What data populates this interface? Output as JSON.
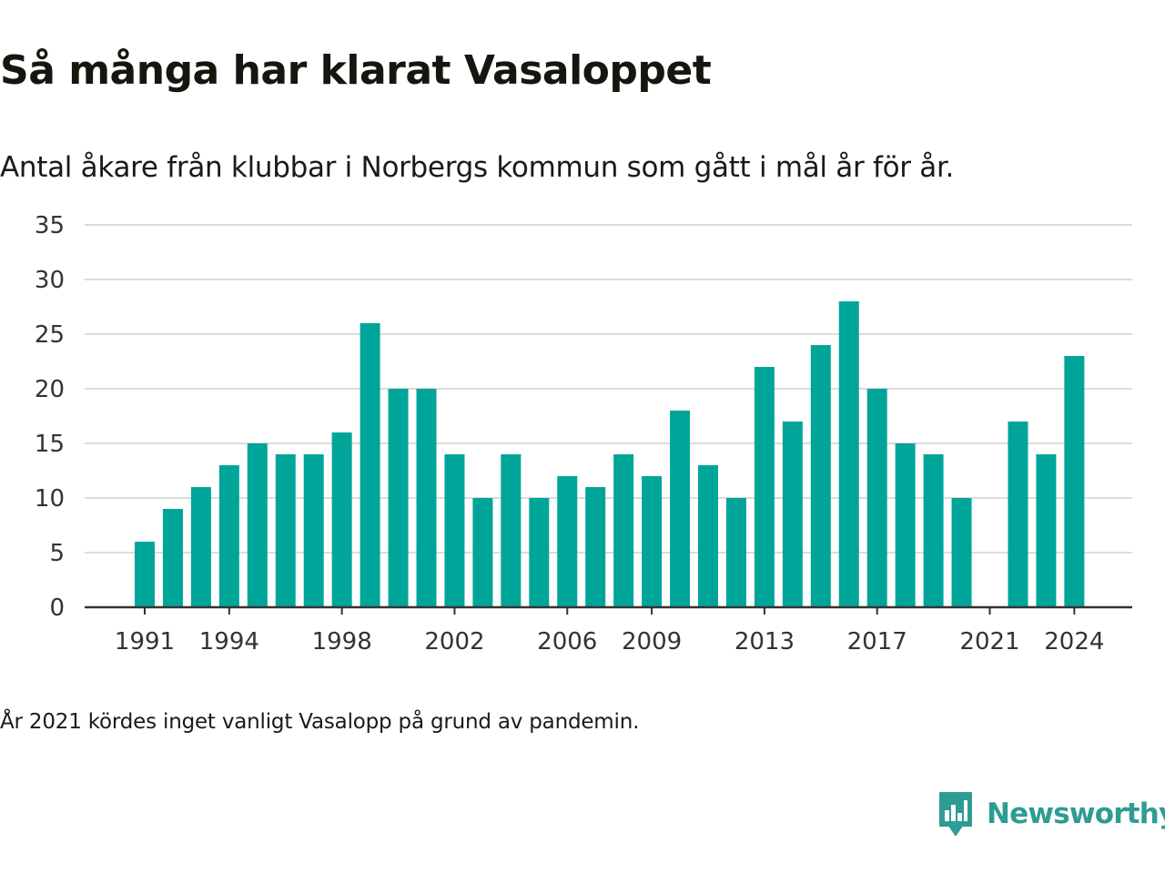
{
  "title": "Så många har klarat Vasaloppet",
  "subtitle": "Antal åkare från klubbar i Norbergs kommun som gått i mål år för år.",
  "footnote": "År 2021 kördes inget vanligt Vasalopp på grund av pandemin.",
  "brand": {
    "name": "Newsworthy",
    "logo_icon": "newsworthy-bar-chart-speech-bubble-icon",
    "color": "#2e9c93"
  },
  "colors": {
    "bar": "#00a59a",
    "grid": "#dcdcdc",
    "axis": "#333333"
  },
  "chart_data": {
    "type": "bar",
    "title": "Så många har klarat Vasaloppet",
    "subtitle": "Antal åkare från klubbar i Norbergs kommun som gått i mål år för år.",
    "xlabel": "",
    "ylabel": "",
    "categories": [
      1991,
      1992,
      1993,
      1994,
      1995,
      1996,
      1997,
      1998,
      1999,
      2000,
      2001,
      2002,
      2003,
      2004,
      2005,
      2006,
      2007,
      2008,
      2009,
      2010,
      2011,
      2012,
      2013,
      2014,
      2015,
      2016,
      2017,
      2018,
      2019,
      2020,
      2021,
      2022,
      2023,
      2024
    ],
    "values": [
      6,
      9,
      11,
      13,
      15,
      14,
      14,
      16,
      26,
      20,
      20,
      14,
      10,
      14,
      10,
      12,
      11,
      14,
      12,
      18,
      13,
      10,
      22,
      17,
      24,
      28,
      20,
      15,
      14,
      10,
      null,
      17,
      14,
      23
    ],
    "ylim": [
      0,
      35
    ],
    "yticks": [
      0,
      5,
      10,
      15,
      20,
      25,
      30,
      35
    ],
    "xticks": [
      1991,
      1994,
      1998,
      2002,
      2006,
      2009,
      2013,
      2017,
      2021,
      2024
    ],
    "grid": true,
    "legend": "none"
  }
}
